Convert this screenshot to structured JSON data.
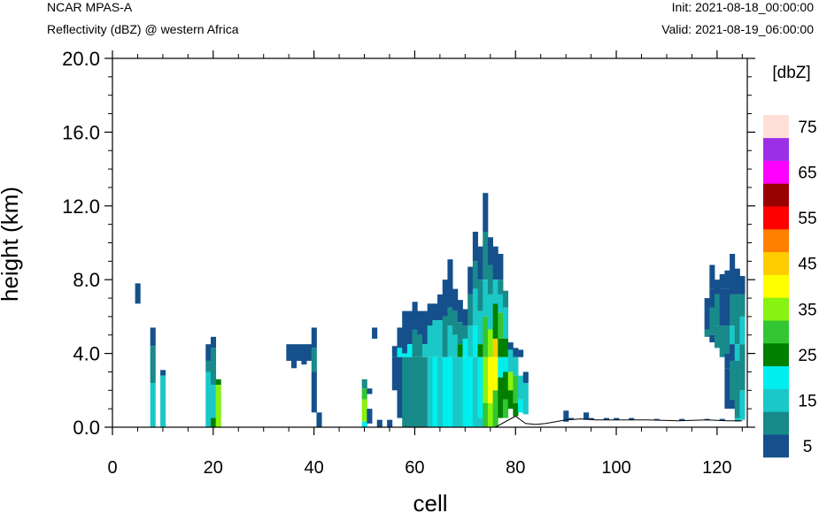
{
  "header": {
    "left_line1": "NCAR MPAS-A",
    "left_line2": "Reflectivity (dBZ) @ western Africa",
    "right_line1": "Init: 2021-08-18_00:00:00",
    "right_line2": "Valid: 2021-08-19_06:00:00"
  },
  "chart_data": {
    "type": "heatmap",
    "xlabel": "cell",
    "ylabel": "height (km)",
    "xlim": [
      0,
      126
    ],
    "ylim": [
      0,
      20
    ],
    "x_ticks": [
      "0",
      "20",
      "40",
      "60",
      "80",
      "100",
      "120"
    ],
    "y_ticks": [
      "0.0",
      "4.0",
      "8.0",
      "12.0",
      "16.0",
      "20.0"
    ],
    "grid": false,
    "colorbar": {
      "title": "[dbZ]",
      "labels": [
        "5",
        "15",
        "25",
        "35",
        "45",
        "55",
        "65",
        "75"
      ],
      "colors": [
        "#15508c",
        "#188a8a",
        "#1ac8c8",
        "#00eeee",
        "#008000",
        "#33c633",
        "#88f210",
        "#ffff00",
        "#ffcc00",
        "#ff8000",
        "#ff0000",
        "#990000",
        "#ff00ff",
        "#9a30e6",
        "#ffe0d8"
      ]
    },
    "terrain": [
      [
        0,
        0
      ],
      [
        76,
        0
      ],
      [
        80,
        0.6
      ],
      [
        82,
        0.2
      ],
      [
        84,
        0.15
      ],
      [
        86,
        0.2
      ],
      [
        88,
        0.3
      ],
      [
        90,
        0.4
      ],
      [
        93,
        0.45
      ],
      [
        96,
        0.4
      ],
      [
        100,
        0.4
      ],
      [
        106,
        0.4
      ],
      [
        112,
        0.35
      ],
      [
        118,
        0.4
      ],
      [
        122,
        0.35
      ],
      [
        124,
        0.35
      ],
      [
        125,
        0.35
      ]
    ],
    "bins": [
      [
        5,
        6.7,
        7.8,
        0
      ],
      [
        8,
        4.4,
        5.4,
        0
      ],
      [
        8,
        2.4,
        4.4,
        1
      ],
      [
        8,
        0,
        2.4,
        2
      ],
      [
        10,
        2.8,
        3.1,
        0
      ],
      [
        10,
        0,
        2.8,
        2
      ],
      [
        19,
        3.6,
        4.5,
        0
      ],
      [
        19,
        3.0,
        3.6,
        1
      ],
      [
        19,
        0,
        3.0,
        2
      ],
      [
        20,
        4.3,
        4.9,
        0
      ],
      [
        20,
        2.3,
        4.3,
        1
      ],
      [
        20,
        0.5,
        2.3,
        2
      ],
      [
        20,
        0,
        0.5,
        4
      ],
      [
        21,
        2.3,
        2.6,
        4
      ],
      [
        21,
        0,
        2.3,
        6
      ],
      [
        35,
        3.6,
        4.5,
        0
      ],
      [
        36,
        3.2,
        4.5,
        0
      ],
      [
        37,
        3.6,
        4.5,
        0
      ],
      [
        38,
        3.4,
        4.5,
        0
      ],
      [
        39,
        3.6,
        4.5,
        0
      ],
      [
        40,
        4.3,
        5.4,
        0
      ],
      [
        40,
        3.0,
        4.3,
        1
      ],
      [
        40,
        0.8,
        3.0,
        0
      ],
      [
        41,
        0,
        0.8,
        0
      ],
      [
        50,
        2.1,
        2.6,
        1
      ],
      [
        50,
        1.5,
        2.1,
        5
      ],
      [
        50,
        0.3,
        1.5,
        6
      ],
      [
        50,
        0,
        0.3,
        3
      ],
      [
        51,
        1.8,
        2.1,
        0
      ],
      [
        51,
        0.2,
        1.0,
        0
      ],
      [
        53,
        0,
        0.4,
        0
      ],
      [
        55,
        0,
        0.4,
        0
      ],
      [
        52,
        4.8,
        5.4,
        0
      ],
      [
        56,
        3.8,
        4.4,
        0
      ],
      [
        56,
        2.0,
        3.8,
        0
      ],
      [
        57,
        4.3,
        5.4,
        0
      ],
      [
        57,
        3.8,
        4.3,
        3
      ],
      [
        57,
        0.5,
        3.8,
        0
      ],
      [
        58,
        4.0,
        6.3,
        0
      ],
      [
        58,
        3.8,
        4.0,
        3
      ],
      [
        58,
        0,
        3.8,
        1
      ],
      [
        59,
        4.5,
        6.3,
        0
      ],
      [
        59,
        3.8,
        4.5,
        3
      ],
      [
        59,
        0,
        3.8,
        1
      ],
      [
        60,
        5.3,
        6.8,
        0
      ],
      [
        60,
        3.8,
        5.3,
        1
      ],
      [
        60,
        0,
        3.8,
        1
      ],
      [
        61,
        5.0,
        6.3,
        0
      ],
      [
        61,
        3.8,
        5.0,
        1
      ],
      [
        61,
        0,
        3.8,
        1
      ],
      [
        62,
        4.5,
        6.3,
        0
      ],
      [
        62,
        3.8,
        4.5,
        2
      ],
      [
        62,
        0,
        3.8,
        1
      ],
      [
        63,
        5.5,
        6.7,
        0
      ],
      [
        63,
        3.8,
        5.5,
        2
      ],
      [
        63,
        0,
        3.8,
        2
      ],
      [
        64,
        5.8,
        6.7,
        0
      ],
      [
        64,
        3.8,
        5.8,
        2
      ],
      [
        64,
        0,
        3.8,
        3
      ],
      [
        65,
        5.8,
        7.2,
        0
      ],
      [
        65,
        3.8,
        5.8,
        2
      ],
      [
        65,
        0,
        3.8,
        2
      ],
      [
        66,
        6.0,
        8.0,
        0
      ],
      [
        66,
        3.8,
        6.0,
        1
      ],
      [
        66,
        0,
        3.8,
        3
      ],
      [
        67,
        6.5,
        9.1,
        0
      ],
      [
        67,
        5.5,
        6.5,
        1
      ],
      [
        67,
        3.8,
        5.5,
        2
      ],
      [
        67,
        0,
        3.8,
        3
      ],
      [
        68,
        6.3,
        7.5,
        0
      ],
      [
        68,
        5.0,
        6.3,
        1
      ],
      [
        68,
        3.8,
        5.0,
        2
      ],
      [
        68,
        0,
        3.8,
        2
      ],
      [
        69,
        5.7,
        6.9,
        0
      ],
      [
        69,
        4.5,
        5.7,
        1
      ],
      [
        69,
        3.8,
        4.5,
        4
      ],
      [
        69,
        0,
        3.8,
        2
      ],
      [
        70,
        5.5,
        6.4,
        0
      ],
      [
        70,
        4.8,
        5.5,
        1
      ],
      [
        70,
        3.8,
        4.8,
        3
      ],
      [
        70,
        0,
        3.8,
        3
      ],
      [
        71,
        7.2,
        8.7,
        0
      ],
      [
        71,
        5.5,
        7.2,
        1
      ],
      [
        71,
        3.8,
        5.5,
        2
      ],
      [
        71,
        0,
        3.8,
        3
      ],
      [
        72,
        9.0,
        10.6,
        0
      ],
      [
        72,
        7.5,
        9.0,
        1
      ],
      [
        72,
        5.5,
        7.5,
        2
      ],
      [
        72,
        3.8,
        5.5,
        3
      ],
      [
        72,
        0,
        3.8,
        2
      ],
      [
        73,
        8.0,
        9.8,
        0
      ],
      [
        73,
        6.3,
        8.0,
        1
      ],
      [
        73,
        4.5,
        6.3,
        2
      ],
      [
        73,
        3.8,
        4.5,
        4
      ],
      [
        73,
        0.5,
        3.8,
        3
      ],
      [
        73,
        0,
        0.5,
        2
      ],
      [
        74,
        10.6,
        12.7,
        0
      ],
      [
        74,
        8.0,
        10.6,
        1
      ],
      [
        74,
        6.0,
        8.0,
        2
      ],
      [
        74,
        3.8,
        6.0,
        5
      ],
      [
        74,
        1.3,
        3.8,
        6
      ],
      [
        74,
        0,
        1.3,
        5
      ],
      [
        75,
        8.8,
        10.3,
        0
      ],
      [
        75,
        7.2,
        8.8,
        1
      ],
      [
        75,
        5.3,
        7.2,
        2
      ],
      [
        75,
        3.8,
        5.3,
        6
      ],
      [
        75,
        1.3,
        3.8,
        7
      ],
      [
        75,
        0,
        1.3,
        6
      ],
      [
        76,
        8.0,
        9.8,
        0
      ],
      [
        76,
        6.7,
        8.0,
        2
      ],
      [
        76,
        4.8,
        6.7,
        4
      ],
      [
        76,
        3.8,
        4.8,
        8
      ],
      [
        76,
        2.0,
        3.8,
        7
      ],
      [
        76,
        0,
        2.0,
        5
      ],
      [
        77,
        8.0,
        9.4,
        0
      ],
      [
        77,
        7.2,
        8.0,
        1
      ],
      [
        77,
        6.2,
        7.2,
        2
      ],
      [
        77,
        4.8,
        6.2,
        5
      ],
      [
        77,
        3.8,
        4.8,
        4
      ],
      [
        77,
        2.7,
        3.8,
        3
      ],
      [
        77,
        0.5,
        2.7,
        4
      ],
      [
        78,
        6.5,
        7.4,
        1
      ],
      [
        78,
        4.8,
        6.5,
        2
      ],
      [
        78,
        3.8,
        4.8,
        4
      ],
      [
        78,
        3.0,
        3.8,
        3
      ],
      [
        78,
        1.5,
        3.0,
        4
      ],
      [
        78,
        0.5,
        1.5,
        5
      ],
      [
        79,
        4.2,
        4.6,
        0
      ],
      [
        79,
        3.0,
        4.2,
        2
      ],
      [
        79,
        2.0,
        3.0,
        6
      ],
      [
        79,
        1.0,
        2.0,
        4
      ],
      [
        80,
        3.8,
        4.3,
        0
      ],
      [
        80,
        2.8,
        3.8,
        2
      ],
      [
        80,
        1.3,
        2.8,
        5
      ],
      [
        80,
        0.6,
        1.3,
        4
      ],
      [
        81,
        3.8,
        4.2,
        0
      ],
      [
        81,
        1.5,
        2.8,
        2
      ],
      [
        81,
        0.8,
        1.5,
        3
      ],
      [
        82,
        2.4,
        3.0,
        0
      ],
      [
        82,
        0.7,
        2.4,
        2
      ],
      [
        90,
        0.3,
        0.9,
        0
      ],
      [
        91,
        0.4,
        0.5,
        0
      ],
      [
        94,
        0.4,
        0.8,
        0
      ],
      [
        95,
        0.4,
        0.5,
        0
      ],
      [
        98,
        0.4,
        0.5,
        0
      ],
      [
        100,
        0.4,
        0.5,
        0
      ],
      [
        103,
        0.4,
        0.5,
        0
      ],
      [
        108,
        0.4,
        0.45,
        0
      ],
      [
        113,
        0.35,
        0.45,
        0
      ],
      [
        118,
        0.38,
        0.45,
        0
      ],
      [
        121,
        0.35,
        0.45,
        0
      ],
      [
        118,
        5.3,
        7.0,
        0
      ],
      [
        118,
        4.9,
        5.3,
        1
      ],
      [
        119,
        7.5,
        8.8,
        0
      ],
      [
        119,
        6.5,
        7.5,
        0
      ],
      [
        119,
        5.0,
        6.5,
        1
      ],
      [
        119,
        4.6,
        5.0,
        0
      ],
      [
        120,
        7.2,
        8.0,
        0
      ],
      [
        120,
        5.5,
        7.2,
        1
      ],
      [
        120,
        4.3,
        5.5,
        1
      ],
      [
        121,
        7.5,
        8.3,
        0
      ],
      [
        121,
        5.5,
        7.5,
        0
      ],
      [
        121,
        3.8,
        5.5,
        1
      ],
      [
        122,
        7.5,
        8.5,
        0
      ],
      [
        122,
        5.5,
        7.5,
        0
      ],
      [
        122,
        4.0,
        5.5,
        1
      ],
      [
        122,
        3.2,
        4.0,
        0
      ],
      [
        122,
        1.0,
        3.2,
        0
      ],
      [
        123,
        7.2,
        9.4,
        0
      ],
      [
        123,
        5.5,
        7.2,
        1
      ],
      [
        123,
        4.5,
        5.5,
        2
      ],
      [
        123,
        3.6,
        4.5,
        0
      ],
      [
        123,
        1.5,
        3.6,
        1
      ],
      [
        123,
        1.0,
        1.5,
        0
      ],
      [
        124,
        7.2,
        8.6,
        0
      ],
      [
        124,
        4.5,
        7.2,
        1
      ],
      [
        124,
        3.6,
        4.5,
        2
      ],
      [
        124,
        0.5,
        3.6,
        1
      ],
      [
        124,
        0.3,
        0.5,
        2
      ],
      [
        125,
        7.2,
        8.2,
        0
      ],
      [
        125,
        6.0,
        7.2,
        1
      ],
      [
        125,
        4.5,
        6.0,
        2
      ],
      [
        125,
        2.0,
        4.5,
        1
      ],
      [
        125,
        0.4,
        2.0,
        2
      ]
    ]
  }
}
